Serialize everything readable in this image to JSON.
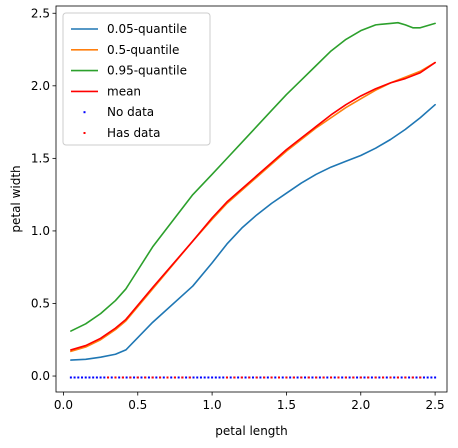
{
  "chart_data": {
    "type": "line",
    "xlabel": "petal length",
    "ylabel": "petal width",
    "xlim": [
      -0.05,
      2.58
    ],
    "ylim": [
      -0.11,
      2.55
    ],
    "xticks": [
      0.0,
      0.5,
      1.0,
      1.5,
      2.0,
      2.5
    ],
    "xtick_labels": [
      "0.0",
      "0.5",
      "1.0",
      "1.5",
      "2.0",
      "2.5"
    ],
    "yticks": [
      0.0,
      0.5,
      1.0,
      1.5,
      2.0,
      2.5
    ],
    "ytick_labels": [
      "0.0",
      "0.5",
      "1.0",
      "1.5",
      "2.0",
      "2.5"
    ],
    "grid": false,
    "legend_position": "upper-left",
    "series": [
      {
        "name": "0.05-quantile",
        "kind": "line",
        "color": "#1f77b4",
        "x": [
          0.05,
          0.15,
          0.25,
          0.35,
          0.42,
          0.6,
          0.87,
          1.0,
          1.1,
          1.2,
          1.3,
          1.4,
          1.5,
          1.6,
          1.7,
          1.8,
          1.9,
          2.0,
          2.1,
          2.2,
          2.3,
          2.4,
          2.5
        ],
        "y": [
          0.11,
          0.115,
          0.13,
          0.15,
          0.18,
          0.37,
          0.62,
          0.78,
          0.91,
          1.02,
          1.11,
          1.19,
          1.26,
          1.33,
          1.39,
          1.44,
          1.48,
          1.52,
          1.57,
          1.63,
          1.7,
          1.78,
          1.87
        ]
      },
      {
        "name": "0.5-quantile",
        "kind": "line",
        "color": "#ff7f0e",
        "x": [
          0.05,
          0.15,
          0.25,
          0.35,
          0.42,
          0.6,
          0.87,
          1.0,
          1.1,
          1.2,
          1.3,
          1.4,
          1.5,
          1.6,
          1.7,
          1.8,
          1.9,
          2.0,
          2.1,
          2.2,
          2.3,
          2.4,
          2.5
        ],
        "y": [
          0.17,
          0.2,
          0.25,
          0.32,
          0.38,
          0.6,
          0.93,
          1.08,
          1.19,
          1.28,
          1.37,
          1.46,
          1.55,
          1.63,
          1.71,
          1.78,
          1.85,
          1.91,
          1.97,
          2.02,
          2.06,
          2.1,
          2.16
        ]
      },
      {
        "name": "0.95-quantile",
        "kind": "line",
        "color": "#2ca02c",
        "x": [
          0.05,
          0.15,
          0.25,
          0.35,
          0.42,
          0.6,
          0.87,
          1.0,
          1.1,
          1.2,
          1.3,
          1.4,
          1.5,
          1.6,
          1.7,
          1.8,
          1.9,
          2.0,
          2.1,
          2.2,
          2.25,
          2.3,
          2.35,
          2.4,
          2.5
        ],
        "y": [
          0.31,
          0.36,
          0.43,
          0.52,
          0.6,
          0.89,
          1.25,
          1.39,
          1.5,
          1.61,
          1.72,
          1.83,
          1.94,
          2.04,
          2.14,
          2.24,
          2.32,
          2.38,
          2.42,
          2.43,
          2.435,
          2.42,
          2.4,
          2.4,
          2.43
        ]
      },
      {
        "name": "mean",
        "kind": "line",
        "color": "#ff0000",
        "x": [
          0.05,
          0.15,
          0.25,
          0.35,
          0.42,
          0.6,
          0.87,
          1.0,
          1.1,
          1.2,
          1.3,
          1.4,
          1.5,
          1.6,
          1.7,
          1.8,
          1.9,
          2.0,
          2.1,
          2.2,
          2.3,
          2.4,
          2.5
        ],
        "y": [
          0.18,
          0.21,
          0.26,
          0.33,
          0.39,
          0.61,
          0.93,
          1.09,
          1.2,
          1.29,
          1.38,
          1.47,
          1.56,
          1.64,
          1.72,
          1.8,
          1.87,
          1.93,
          1.98,
          2.02,
          2.05,
          2.09,
          2.16
        ]
      },
      {
        "name": "No data",
        "kind": "points",
        "color": "#0000ff",
        "x_range": [
          0.05,
          2.5
        ],
        "x_step": 0.025,
        "y": -0.01
      },
      {
        "name": "Has data",
        "kind": "points",
        "color": "#ff0000",
        "x": [
          0.3,
          0.35,
          0.4,
          0.45,
          0.5,
          0.55,
          0.6,
          0.65,
          0.7,
          0.75,
          0.8,
          0.85,
          1.1,
          1.15,
          1.2,
          1.25,
          1.3,
          1.35,
          1.4,
          1.45,
          1.5,
          1.55,
          1.6,
          1.65,
          1.7,
          1.75,
          1.8,
          1.85,
          1.9,
          1.95,
          2.0,
          2.05,
          2.1,
          2.15,
          2.2,
          2.25,
          2.3,
          2.35,
          2.4
        ],
        "y": -0.01
      }
    ]
  }
}
